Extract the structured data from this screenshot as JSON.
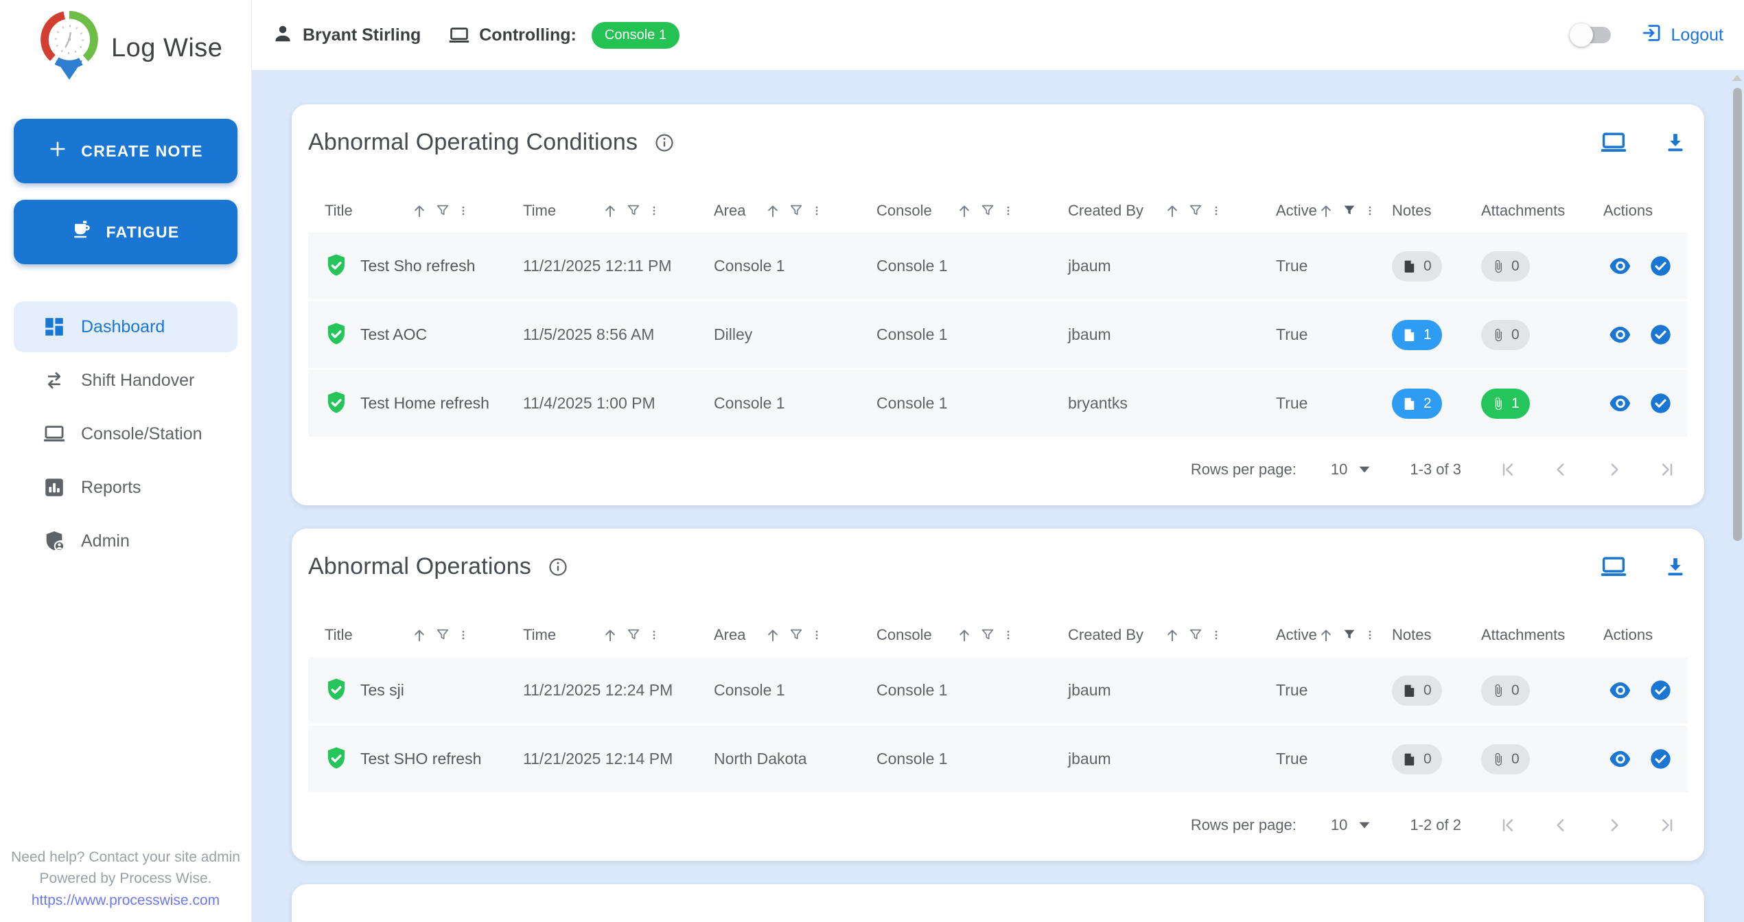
{
  "app": {
    "brand": "Log Wise"
  },
  "header": {
    "user_name": "Bryant Stirling",
    "controlling_label": "Controlling:",
    "controlling_badge": "Console 1",
    "logout_label": "Logout"
  },
  "sidebar": {
    "create_note_label": "CREATE NOTE",
    "fatigue_label": "FATIGUE",
    "items": [
      {
        "label": "Dashboard",
        "active": true
      },
      {
        "label": "Shift Handover",
        "active": false
      },
      {
        "label": "Console/Station",
        "active": false
      },
      {
        "label": "Reports",
        "active": false
      },
      {
        "label": "Admin",
        "active": false
      }
    ],
    "footer": {
      "line1": "Need help? Contact your site admin",
      "line2": "Powered by Process Wise.",
      "link": "https://www.processwise.com"
    }
  },
  "colors": {
    "primary_blue": "#1976d2",
    "badge_green": "#23c252",
    "notes_active_blue": "#2f9cf4",
    "attachment_active_green": "#24c55b",
    "gray_pill": "#e2e4e7",
    "icon_gray": "#797f86"
  },
  "icons": {
    "row_status": "shield-check-icon",
    "card_header": [
      "console-view-icon",
      "download-icon"
    ],
    "column_tools": [
      "sort-asc-icon",
      "filter-icon",
      "column-menu-icon"
    ],
    "row_actions": [
      "eye-icon",
      "check-circle-icon"
    ]
  },
  "tables": [
    {
      "title": "Abnormal Operating Conditions",
      "columns": [
        {
          "key": "title",
          "label": "Title",
          "sortable": true
        },
        {
          "key": "time",
          "label": "Time",
          "sortable": true
        },
        {
          "key": "area",
          "label": "Area",
          "sortable": true
        },
        {
          "key": "console",
          "label": "Console",
          "sortable": true
        },
        {
          "key": "created_by",
          "label": "Created By",
          "sortable": true
        },
        {
          "key": "active",
          "label": "Active",
          "sortable": true,
          "filter_active": true
        },
        {
          "key": "notes",
          "label": "Notes",
          "sortable": false
        },
        {
          "key": "attachments",
          "label": "Attachments",
          "sortable": false
        },
        {
          "key": "actions",
          "label": "Actions",
          "sortable": false
        }
      ],
      "rows": [
        {
          "title": "Test Sho refresh",
          "time": "11/21/2025 12:11 PM",
          "area": "Console 1",
          "console": "Console 1",
          "created_by": "jbaum",
          "active": "True",
          "notes_count": 0,
          "attachments_count": 0
        },
        {
          "title": "Test AOC",
          "time": "11/5/2025 8:56 AM",
          "area": "Dilley",
          "console": "Console 1",
          "created_by": "jbaum",
          "active": "True",
          "notes_count": 1,
          "attachments_count": 0
        },
        {
          "title": "Test Home refresh",
          "time": "11/4/2025 1:00 PM",
          "area": "Console 1",
          "console": "Console 1",
          "created_by": "bryantks",
          "active": "True",
          "notes_count": 2,
          "attachments_count": 1
        }
      ],
      "pagination": {
        "rows_per_page_label": "Rows per page:",
        "rows_per_page": "10",
        "range_label": "1-3 of 3"
      }
    },
    {
      "title": "Abnormal Operations",
      "columns": [
        {
          "key": "title",
          "label": "Title",
          "sortable": true
        },
        {
          "key": "time",
          "label": "Time",
          "sortable": true
        },
        {
          "key": "area",
          "label": "Area",
          "sortable": true
        },
        {
          "key": "console",
          "label": "Console",
          "sortable": true
        },
        {
          "key": "created_by",
          "label": "Created By",
          "sortable": true
        },
        {
          "key": "active",
          "label": "Active",
          "sortable": true,
          "filter_active": true
        },
        {
          "key": "notes",
          "label": "Notes",
          "sortable": false
        },
        {
          "key": "attachments",
          "label": "Attachments",
          "sortable": false
        },
        {
          "key": "actions",
          "label": "Actions",
          "sortable": false
        }
      ],
      "rows": [
        {
          "title": "Tes sji",
          "time": "11/21/2025 12:24 PM",
          "area": "Console 1",
          "console": "Console 1",
          "created_by": "jbaum",
          "active": "True",
          "notes_count": 0,
          "attachments_count": 0
        },
        {
          "title": "Test SHO refresh",
          "time": "11/21/2025 12:14 PM",
          "area": "North Dakota",
          "console": "Console 1",
          "created_by": "jbaum",
          "active": "True",
          "notes_count": 0,
          "attachments_count": 0
        }
      ],
      "pagination": {
        "rows_per_page_label": "Rows per page:",
        "rows_per_page": "10",
        "range_label": "1-2 of 2"
      }
    }
  ]
}
